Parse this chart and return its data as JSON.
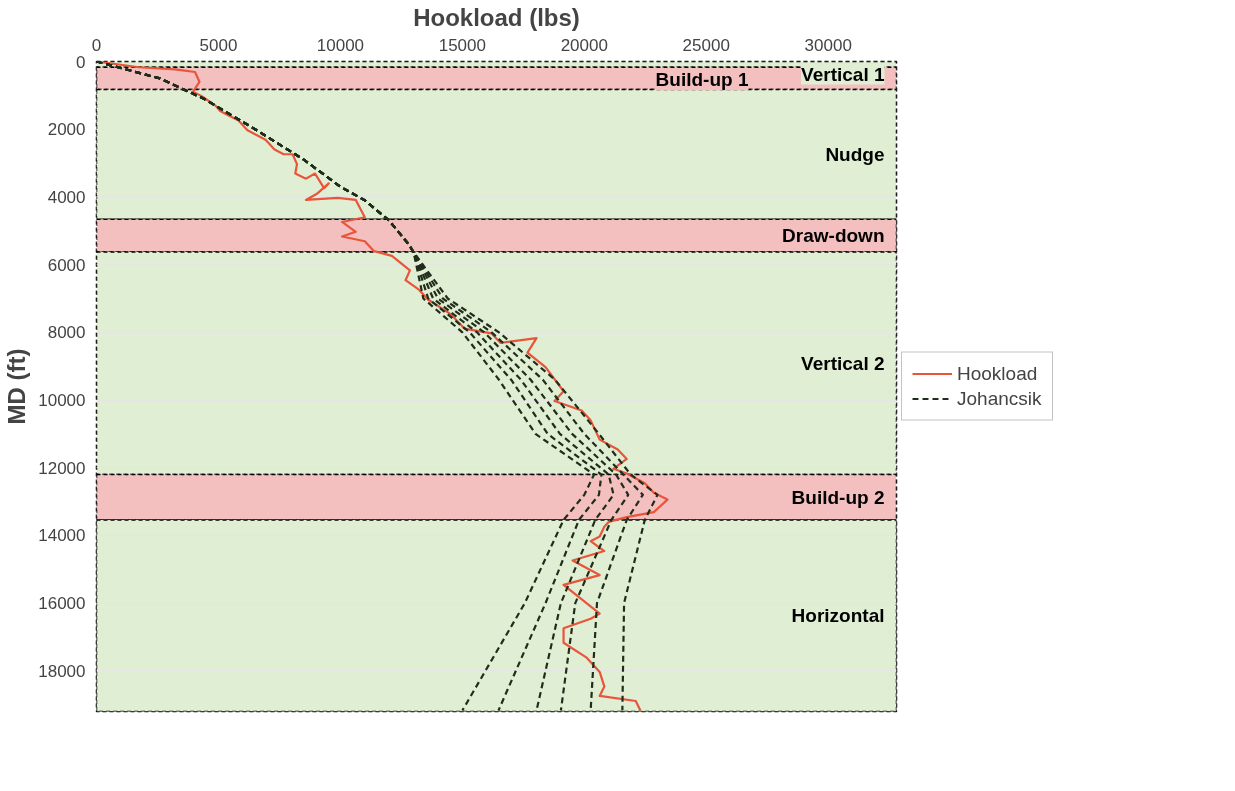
{
  "chart_data": {
    "type": "line",
    "xlabel": "Hookload (lbs)",
    "ylabel": "MD (ft)",
    "xlim": [
      0,
      32800
    ],
    "xticks": [
      0,
      5000,
      10000,
      15000,
      20000,
      25000,
      30000
    ],
    "ylim": [
      19200,
      0
    ],
    "yticks": [
      0,
      2000,
      4000,
      6000,
      8000,
      10000,
      12000,
      14000,
      16000,
      18000
    ],
    "grid": "y",
    "legend": "right",
    "bands": [
      {
        "axis": "y",
        "from": 0,
        "to": 170,
        "label": "Vertical 1",
        "color": "#e0efd4"
      },
      {
        "axis": "y",
        "from": 170,
        "to": 830,
        "label": "Build-up 1",
        "color": "#f4bfbf"
      },
      {
        "axis": "y",
        "from": 830,
        "to": 4660,
        "label": "Nudge",
        "color": "#e0efd4"
      },
      {
        "axis": "y",
        "from": 4660,
        "to": 5630,
        "label": "Draw-down",
        "color": "#f4bfbf"
      },
      {
        "axis": "y",
        "from": 5630,
        "to": 12200,
        "label": "Vertical 2",
        "color": "#e0efd4"
      },
      {
        "axis": "y",
        "from": 12200,
        "to": 13540,
        "label": "Build-up 2",
        "color": "#f4bfbf"
      },
      {
        "axis": "y",
        "from": 13540,
        "to": 19200,
        "label": "Horizontal",
        "color": "#e0efd4"
      }
    ],
    "series": [
      {
        "name": "Hookload",
        "color": "#e8553a",
        "line_style": "solid",
        "x": [
          0,
          1740,
          3220,
          4040,
          4220,
          3960,
          4330,
          4890,
          5070,
          5440,
          5820,
          6190,
          6560,
          6930,
          7300,
          7670,
          8040,
          8220,
          8150,
          8590,
          8960,
          9330,
          9520,
          9070,
          8590,
          9890,
          10630,
          11000,
          10070,
          10630,
          10070,
          11000,
          11370,
          12110,
          12850,
          12670,
          13220,
          13590,
          14520,
          15080,
          16190,
          16560,
          18040,
          17670,
          18410,
          19150,
          18780,
          19890,
          20260,
          20630,
          21370,
          21740,
          21190,
          21740,
          22480,
          22850,
          23410,
          22850,
          21740,
          21000,
          20820,
          20630,
          20260,
          20820,
          19520,
          20630,
          19150,
          20630,
          20260,
          19150,
          19150,
          20080,
          20630,
          20820,
          20630,
          22110,
          22300
        ],
        "values": [
          0,
          170,
          230,
          310,
          600,
          890,
          1030,
          1310,
          1460,
          1600,
          1740,
          2030,
          2170,
          2310,
          2600,
          2740,
          2740,
          3030,
          3310,
          3460,
          3310,
          3740,
          3600,
          3890,
          4090,
          4030,
          4090,
          4600,
          4740,
          5030,
          5170,
          5310,
          5600,
          5740,
          6170,
          6460,
          6740,
          7030,
          7460,
          7890,
          8030,
          8310,
          8170,
          8600,
          9030,
          9740,
          10030,
          10310,
          10600,
          11170,
          11460,
          11740,
          12030,
          12170,
          12460,
          12740,
          12940,
          13310,
          13460,
          13600,
          13740,
          14030,
          14170,
          14460,
          14740,
          15170,
          15460,
          16310,
          16460,
          16740,
          17170,
          17600,
          18030,
          18460,
          18740,
          18890,
          19170
        ]
      },
      {
        "name": "Johancsik",
        "color": "#1f2d1a",
        "line_style": "dashed",
        "x": [
          0,
          2600,
          4400,
          6500,
          8500,
          10000,
          11000,
          12000,
          12800,
          13000,
          13400,
          15000,
          16500,
          18000,
          20400,
          20000,
          19150,
          17560,
          15000
        ],
        "values": [
          0,
          500,
          1100,
          2000,
          2900,
          3700,
          4100,
          4700,
          5400,
          5630,
          7000,
          8000,
          9400,
          11000,
          12200,
          12800,
          13540,
          16000,
          19170
        ]
      },
      {
        "type": "line",
        "color": "#1f2d1a",
        "line_style": "dashed",
        "x": [
          0,
          2600,
          4400,
          6500,
          8500,
          10000,
          11000,
          12000,
          12800,
          13000,
          13600,
          15300,
          17000,
          18500,
          20700,
          20600,
          19780,
          18410,
          16480
        ],
        "values": [
          0,
          500,
          1100,
          2000,
          2900,
          3700,
          4100,
          4700,
          5400,
          5630,
          7000,
          8000,
          9400,
          11000,
          12200,
          12800,
          13540,
          16000,
          19170
        ]
      },
      {
        "type": "line",
        "color": "#1f2d1a",
        "line_style": "dashed",
        "x": [
          0,
          2600,
          4400,
          6500,
          8500,
          10000,
          11000,
          12000,
          12800,
          13000,
          13800,
          15600,
          17400,
          19000,
          21000,
          21200,
          20450,
          19040,
          18040
        ],
        "values": [
          0,
          500,
          1100,
          2000,
          2900,
          3700,
          4100,
          4700,
          5400,
          5630,
          7000,
          8000,
          9400,
          11000,
          12200,
          12800,
          13540,
          16000,
          19170
        ]
      },
      {
        "type": "line",
        "color": "#1f2d1a",
        "line_style": "dashed",
        "x": [
          0,
          2600,
          4400,
          6500,
          8500,
          10000,
          11000,
          12000,
          12800,
          13000,
          14000,
          15900,
          17800,
          19500,
          21300,
          21800,
          21110,
          19630,
          19040
        ],
        "values": [
          0,
          500,
          1100,
          2000,
          2900,
          3700,
          4100,
          4700,
          5400,
          5630,
          7000,
          8000,
          9400,
          11000,
          12200,
          12800,
          13540,
          16000,
          19170
        ]
      },
      {
        "type": "line",
        "color": "#1f2d1a",
        "line_style": "dashed",
        "x": [
          0,
          2600,
          4400,
          6500,
          8500,
          10000,
          11000,
          12000,
          12800,
          13000,
          14200,
          16200,
          18300,
          20000,
          21600,
          22400,
          21740,
          20520,
          20260
        ],
        "values": [
          0,
          500,
          1100,
          2000,
          2900,
          3700,
          4100,
          4700,
          5400,
          5630,
          7000,
          8000,
          9400,
          11000,
          12200,
          12800,
          13540,
          16000,
          19170
        ]
      },
      {
        "type": "line",
        "color": "#1f2d1a",
        "line_style": "dashed",
        "x": [
          0,
          2600,
          4400,
          6500,
          8500,
          10000,
          11000,
          12000,
          12800,
          13000,
          14400,
          16500,
          18800,
          20600,
          21900,
          23000,
          22480,
          21630,
          21560
        ],
        "values": [
          0,
          500,
          1100,
          2000,
          2900,
          3700,
          4100,
          4700,
          5400,
          5630,
          7000,
          8000,
          9400,
          11000,
          12200,
          12800,
          13540,
          16000,
          19170
        ]
      }
    ]
  }
}
